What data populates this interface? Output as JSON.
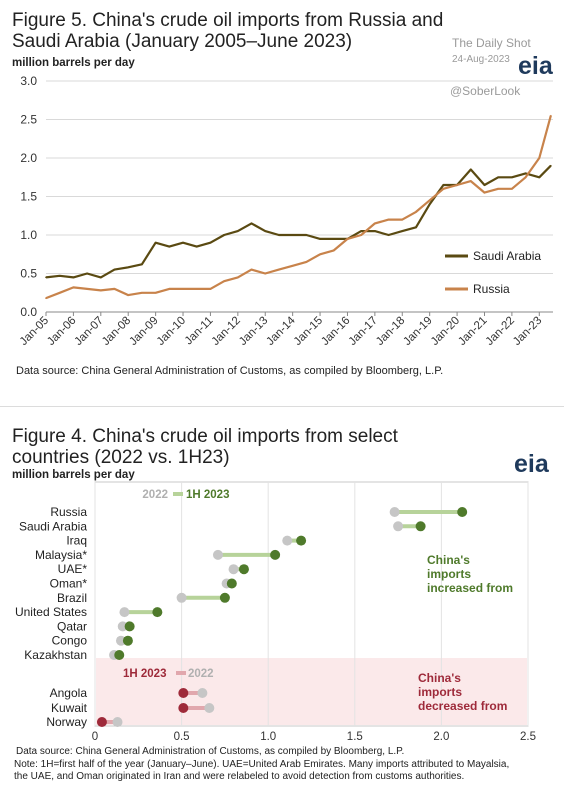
{
  "watermark": {
    "line1": "The Daily Shot",
    "line2": "24-Aug-2023",
    "line3": "@SoberLook"
  },
  "logo_text": "eia",
  "chart_data": [
    {
      "type": "line",
      "title": "Figure 5. China's crude oil imports from Russia and Saudi Arabia (January 2005–June 2023)",
      "units": "million barrels per day",
      "source": "Data source: China General Administration of Customs, as compiled by Bloomberg, L.P.",
      "x_tick_labels": [
        "Jan-05",
        "Jan-06",
        "Jan-07",
        "Jan-08",
        "Jan-09",
        "Jan-10",
        "Jan-11",
        "Jan-12",
        "Jan-13",
        "Jan-14",
        "Jan-15",
        "Jan-16",
        "Jan-17",
        "Jan-18",
        "Jan-19",
        "Jan-20",
        "Jan-21",
        "Jan-22",
        "Jan-23"
      ],
      "y_tick_labels": [
        "0.0",
        "0.5",
        "1.0",
        "1.5",
        "2.0",
        "2.5",
        "3.0"
      ],
      "ylim": [
        0,
        3.0
      ],
      "xlim": [
        2005.0,
        2023.5
      ],
      "grid": true,
      "legend_position": "right",
      "series": [
        {
          "name": "Saudi Arabia",
          "color": "#5a4a12",
          "x": [
            2005.0,
            2005.5,
            2006.0,
            2006.5,
            2007.0,
            2007.5,
            2008.0,
            2008.5,
            2009.0,
            2009.5,
            2010.0,
            2010.5,
            2011.0,
            2011.5,
            2012.0,
            2012.5,
            2013.0,
            2013.5,
            2014.0,
            2014.5,
            2015.0,
            2015.5,
            2016.0,
            2016.5,
            2017.0,
            2017.5,
            2018.0,
            2018.5,
            2019.0,
            2019.5,
            2020.0,
            2020.5,
            2021.0,
            2021.5,
            2022.0,
            2022.5,
            2023.0,
            2023.42
          ],
          "values": [
            0.45,
            0.47,
            0.45,
            0.5,
            0.45,
            0.55,
            0.58,
            0.62,
            0.9,
            0.85,
            0.9,
            0.85,
            0.9,
            1.0,
            1.05,
            1.15,
            1.05,
            1.0,
            1.0,
            1.0,
            0.95,
            0.95,
            0.95,
            1.05,
            1.05,
            1.0,
            1.05,
            1.1,
            1.4,
            1.65,
            1.65,
            1.85,
            1.65,
            1.75,
            1.75,
            1.8,
            1.75,
            1.9
          ]
        },
        {
          "name": "Russia",
          "color": "#c8834b",
          "x": [
            2005.0,
            2005.5,
            2006.0,
            2006.5,
            2007.0,
            2007.5,
            2008.0,
            2008.5,
            2009.0,
            2009.5,
            2010.0,
            2010.5,
            2011.0,
            2011.5,
            2012.0,
            2012.5,
            2013.0,
            2013.5,
            2014.0,
            2014.5,
            2015.0,
            2015.5,
            2016.0,
            2016.5,
            2017.0,
            2017.5,
            2018.0,
            2018.5,
            2019.0,
            2019.5,
            2020.0,
            2020.5,
            2021.0,
            2021.5,
            2022.0,
            2022.5,
            2023.0,
            2023.42
          ],
          "values": [
            0.18,
            0.25,
            0.32,
            0.3,
            0.28,
            0.3,
            0.22,
            0.25,
            0.25,
            0.3,
            0.3,
            0.3,
            0.3,
            0.4,
            0.45,
            0.55,
            0.5,
            0.55,
            0.6,
            0.65,
            0.75,
            0.8,
            0.95,
            1.0,
            1.15,
            1.2,
            1.2,
            1.3,
            1.45,
            1.6,
            1.65,
            1.7,
            1.55,
            1.6,
            1.6,
            1.75,
            2.0,
            2.55
          ]
        }
      ]
    },
    {
      "type": "dumbbell",
      "title": "Figure 4. China's crude oil imports from select countries (2022 vs. 1H23)",
      "units": "million barrels per day",
      "source": "Data source: China General Administration of Customs, as compiled by Bloomberg, L.P.",
      "note_lines": [
        "Note: 1H=first half of the year (January–June). UAE=United Arab Emirates. Many imports attributed to Mayalsia,",
        "the UAE, and Oman originated in Iran and were relabeled to avoid detection from customs authorities."
      ],
      "x_tick_labels": [
        "0",
        "0.5",
        "1.0",
        "1.5",
        "2.0",
        "2.5"
      ],
      "xlim": [
        0,
        2.5
      ],
      "increase_legend": {
        "label_2022": "2022",
        "label_1h": "1H 2023"
      },
      "decrease_legend": {
        "label_1h": "1H 2023",
        "label_2022": "2022"
      },
      "increase_annotation": [
        "China's",
        "imports",
        "increased from"
      ],
      "decrease_annotation": [
        "China's",
        "imports",
        "decreased from"
      ],
      "colors": {
        "inc_dot": "#4f7a2b",
        "inc_bar": "#b7d39a",
        "dec_dot": "#9e2a3a",
        "dec_bar": "#e1a7ad",
        "y2022": "#c6c6c6",
        "dec_band": "#fbe9ea"
      },
      "increased": [
        {
          "country": "Russia",
          "v2022": 1.73,
          "v1h23": 2.12
        },
        {
          "country": "Saudi Arabia",
          "v2022": 1.75,
          "v1h23": 1.88
        },
        {
          "country": "Iraq",
          "v2022": 1.11,
          "v1h23": 1.19
        },
        {
          "country": "Malaysia*",
          "v2022": 0.71,
          "v1h23": 1.04
        },
        {
          "country": "UAE*",
          "v2022": 0.8,
          "v1h23": 0.86
        },
        {
          "country": "Oman*",
          "v2022": 0.76,
          "v1h23": 0.79
        },
        {
          "country": "Brazil",
          "v2022": 0.5,
          "v1h23": 0.75
        },
        {
          "country": "United States",
          "v2022": 0.17,
          "v1h23": 0.36
        },
        {
          "country": "Qatar",
          "v2022": 0.16,
          "v1h23": 0.2
        },
        {
          "country": "Congo",
          "v2022": 0.15,
          "v1h23": 0.19
        },
        {
          "country": "Kazakhstan",
          "v2022": 0.11,
          "v1h23": 0.14
        }
      ],
      "decreased": [
        {
          "country": "Angola",
          "v2022": 0.62,
          "v1h23": 0.51
        },
        {
          "country": "Kuwait",
          "v2022": 0.66,
          "v1h23": 0.51
        },
        {
          "country": "Norway",
          "v2022": 0.13,
          "v1h23": 0.04
        }
      ]
    }
  ]
}
